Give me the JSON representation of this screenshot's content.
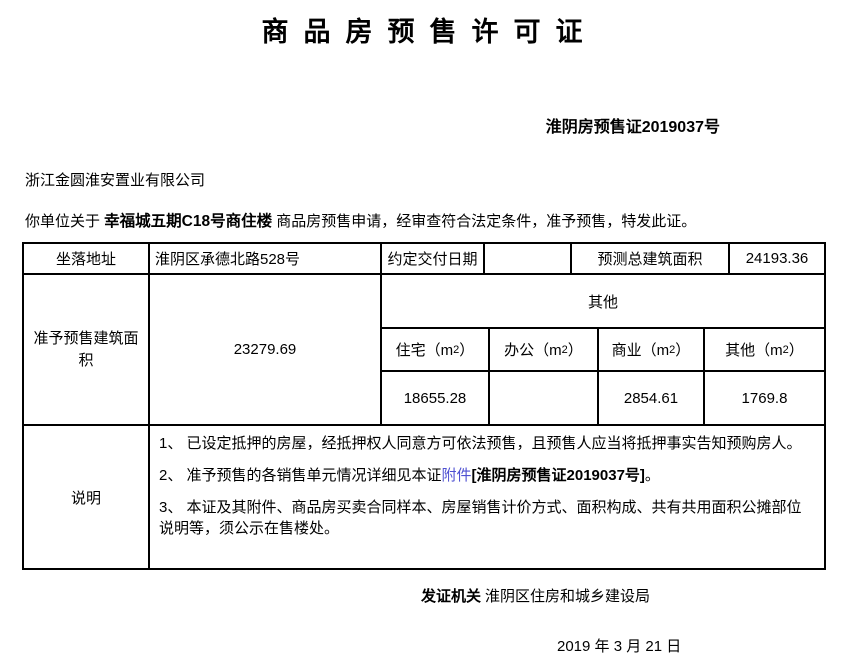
{
  "page": {
    "title": "商品房预售许可证",
    "certificate_no": "淮阴房预售证2019037号",
    "company": "浙江金圆淮安置业有限公司",
    "intro": {
      "pre": "你单位关于 ",
      "project": "幸福城五期C18号商住楼",
      "post": " 商品房预售申请，经审查符合法定条件，准予预售，特发此证。"
    }
  },
  "table": {
    "row1": {
      "address_label": "坐落地址",
      "address_value": "淮阴区承德北路528号",
      "delivery_label": "约定交付日期",
      "delivery_value": "",
      "total_area_label": "预测总建筑面积",
      "total_area_value": "24193.36"
    },
    "approved": {
      "label": "准予预售建筑面积",
      "total": "23279.69",
      "group_header": "其他",
      "columns": [
        {
          "base": "住宅（m",
          "sup": "2",
          "close": "）",
          "value": "18655.28"
        },
        {
          "base": "办公（m",
          "sup": "2",
          "close": "）",
          "value": ""
        },
        {
          "base": "商业（m",
          "sup": "2",
          "close": "）",
          "value": "2854.61"
        },
        {
          "base": "其他（m",
          "sup": "2",
          "close": "）",
          "value": "1769.8"
        }
      ]
    },
    "notes": {
      "label": "说明",
      "item1": "1、 已设定抵押的房屋，经抵押权人同意方可依法预售，且预售人应当将抵押事实告知预购房人。",
      "item2": {
        "pre": "2、 准予预售的各销售单元情况详细见本证",
        "link": "附件",
        "bold": "[淮阴房预售证2019037号]",
        "close": "。"
      },
      "item3": "3、 本证及其附件、商品房买卖合同样本、房屋销售计价方式、面积构成、共有共用面积公摊部位说明等，须公示在售楼处。"
    }
  },
  "footer": {
    "authority_label": "发证机关",
    "authority_value": "淮阴区住房和城乡建设局",
    "date": "2019 年 3 月 21 日"
  },
  "colors": {
    "link": "#4e50d2",
    "text": "#000000",
    "background": "#ffffff"
  }
}
